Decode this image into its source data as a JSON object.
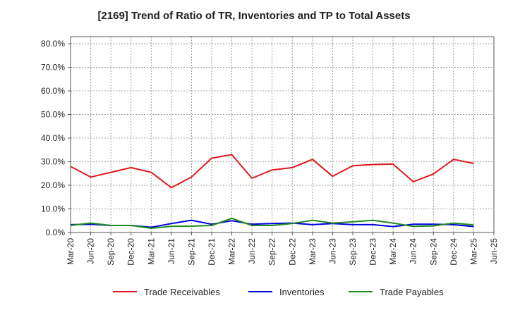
{
  "chart_data": {
    "type": "line",
    "title": "[2169]  Trend of Ratio of TR, Inventories and TP to Total Assets",
    "xlabel": "",
    "ylabel": "",
    "ylim": [
      0,
      83
    ],
    "y_ticks": [
      "0.0%",
      "10.0%",
      "20.0%",
      "30.0%",
      "40.0%",
      "50.0%",
      "60.0%",
      "70.0%",
      "80.0%"
    ],
    "y_tick_values": [
      0,
      10,
      20,
      30,
      40,
      50,
      60,
      70,
      80
    ],
    "x": [
      "Mar-20",
      "Jun-20",
      "Sep-20",
      "Dec-20",
      "Mar-21",
      "Jun-21",
      "Sep-21",
      "Dec-21",
      "Mar-22",
      "Jun-22",
      "Sep-22",
      "Dec-22",
      "Mar-23",
      "Jun-23",
      "Sep-23",
      "Dec-23",
      "Mar-24",
      "Jun-24",
      "Sep-24",
      "Dec-24",
      "Mar-25",
      "Jun-25"
    ],
    "grid": true,
    "legend_position": "bottom",
    "series": [
      {
        "name": "Trade Receivables",
        "color": "#e31a1c",
        "values": [
          28.0,
          23.5,
          25.5,
          27.5,
          25.5,
          19.0,
          23.5,
          31.5,
          33.0,
          23.0,
          26.5,
          27.5,
          31.0,
          23.8,
          28.3,
          28.8,
          29.0,
          21.5,
          24.8,
          31.0,
          29.3,
          null
        ]
      },
      {
        "name": "Inventories",
        "color": "#0000dd",
        "values": [
          3.3,
          3.5,
          3.0,
          3.0,
          2.2,
          3.8,
          5.2,
          3.5,
          5.0,
          3.5,
          3.8,
          4.0,
          3.3,
          3.8,
          3.3,
          3.3,
          2.5,
          3.5,
          3.5,
          3.3,
          2.5,
          null
        ]
      },
      {
        "name": "Trade Payables",
        "color": "#228b22",
        "values": [
          3.0,
          4.0,
          3.0,
          3.0,
          1.8,
          2.6,
          2.7,
          3.0,
          6.0,
          3.0,
          3.0,
          3.8,
          5.2,
          4.0,
          4.5,
          5.2,
          4.0,
          2.6,
          2.8,
          4.0,
          3.2,
          null
        ]
      }
    ]
  }
}
